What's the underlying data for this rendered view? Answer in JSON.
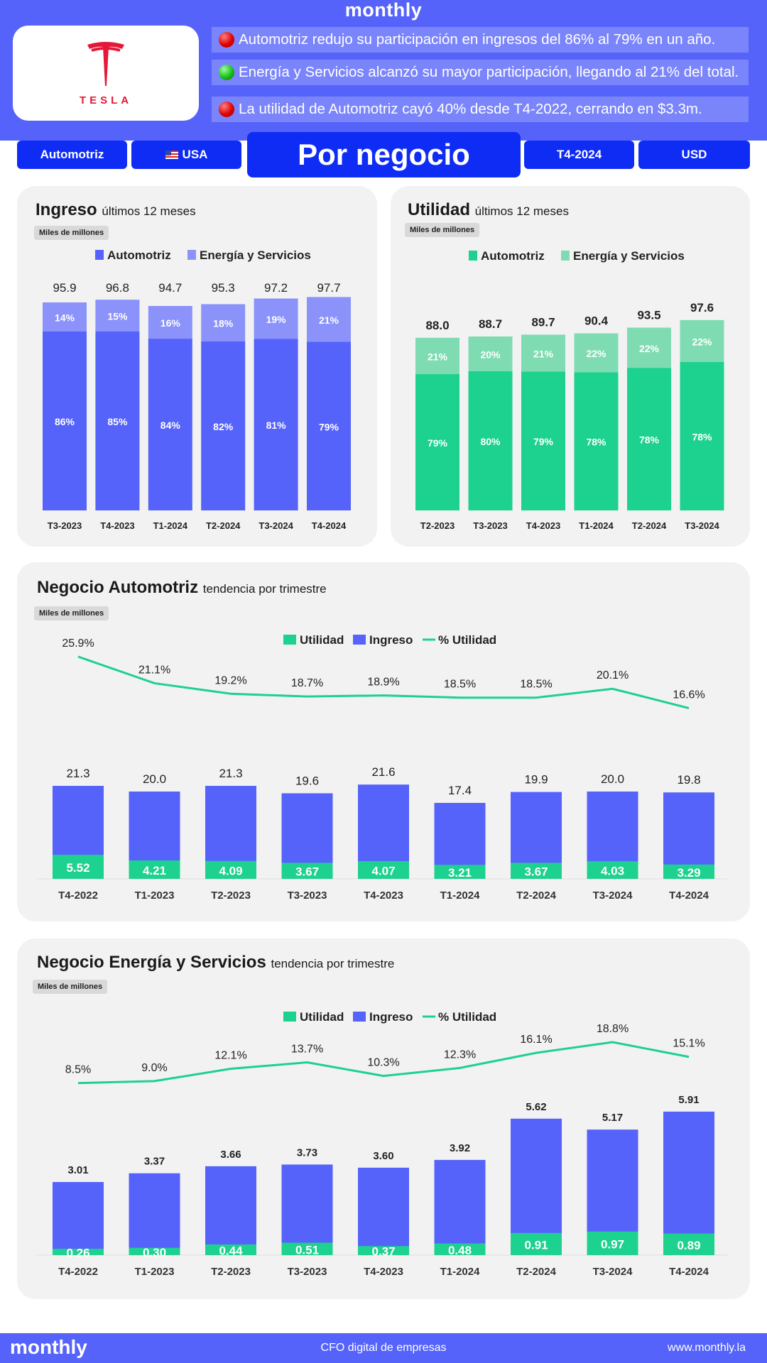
{
  "header": {
    "brand": "monthly",
    "logo_word": "TESLA",
    "insights": [
      {
        "status": "red",
        "text": "Automotriz redujo su participación en ingresos del 86% al 79% en un año."
      },
      {
        "status": "green",
        "text": "Energía y Servicios alcanzó su mayor participación, llegando al 21% del total."
      },
      {
        "status": "red",
        "text": "La utilidad de Automotriz cayó 40% desde T4-2022, cerrando en $3.3m."
      }
    ]
  },
  "filters": {
    "segment": "Automotriz",
    "country": "USA",
    "title": "Por negocio",
    "period": "T4-2024",
    "currency": "USD"
  },
  "colors": {
    "blue": "#5563fa",
    "blue_light": "#8b93fb",
    "green": "#1dd18f",
    "green_light": "#7fdcb2",
    "line": "#1dd18f",
    "tesla_red": "#e31937"
  },
  "chart_data": [
    {
      "id": "ingreso",
      "type": "bar",
      "stacked": true,
      "title": "Ingreso",
      "subtitle": "últimos 12 meses",
      "unit": "Miles de millones",
      "legend_position": "top",
      "categories": [
        "T3-2023",
        "T4-2023",
        "T1-2024",
        "T2-2024",
        "T3-2024",
        "T4-2024"
      ],
      "totals": [
        95.9,
        96.8,
        94.7,
        95.3,
        97.2,
        97.7
      ],
      "series": [
        {
          "name": "Automotriz",
          "color": "#5563fa",
          "values_pct": [
            86,
            85,
            84,
            82,
            81,
            79
          ]
        },
        {
          "name": "Energía y Servicios",
          "color": "#8b93fb",
          "values_pct": [
            14,
            15,
            16,
            18,
            19,
            21
          ]
        }
      ]
    },
    {
      "id": "utilidad",
      "type": "bar",
      "stacked": true,
      "title": "Utilidad",
      "subtitle": "últimos 12 meses",
      "unit": "Miles de millones",
      "legend_position": "top",
      "categories": [
        "T2-2023",
        "T3-2023",
        "T4-2023",
        "T1-2024",
        "T2-2024",
        "T3-2024"
      ],
      "totals": [
        88.0,
        88.7,
        89.7,
        90.4,
        93.5,
        97.6
      ],
      "series": [
        {
          "name": "Automotriz",
          "color": "#1dd18f",
          "values_pct": [
            79,
            80,
            79,
            78,
            78,
            78
          ]
        },
        {
          "name": "Energía y Servicios",
          "color": "#7fdcb2",
          "values_pct": [
            21,
            20,
            21,
            22,
            22,
            22
          ]
        }
      ]
    },
    {
      "id": "automotriz",
      "type": "bar",
      "overlay_line": true,
      "title": "Negocio Automotriz",
      "subtitle": "tendencia por trimestre",
      "unit": "Miles de millones",
      "legend_position": "top",
      "categories": [
        "T4-2022",
        "T1-2023",
        "T2-2023",
        "T3-2023",
        "T4-2023",
        "T1-2024",
        "T2-2024",
        "T3-2024",
        "T4-2024"
      ],
      "series": [
        {
          "name": "Utilidad",
          "color": "#1dd18f",
          "values": [
            5.52,
            4.21,
            4.09,
            3.67,
            4.07,
            3.21,
            3.67,
            4.03,
            3.29
          ]
        },
        {
          "name": "Ingreso",
          "color": "#5563fa",
          "values": [
            21.3,
            20.0,
            21.3,
            19.6,
            21.6,
            17.4,
            19.9,
            20.0,
            19.8
          ]
        },
        {
          "name": "% Utilidad",
          "color": "#1dd18f",
          "type": "line",
          "values_pct": [
            25.9,
            21.1,
            19.2,
            18.7,
            18.9,
            18.5,
            18.5,
            20.1,
            16.6
          ]
        }
      ]
    },
    {
      "id": "energia",
      "type": "bar",
      "overlay_line": true,
      "title": "Negocio Energía y Servicios",
      "subtitle": "tendencia por trimestre",
      "unit": "Miles de millones",
      "legend_position": "top",
      "categories": [
        "T4-2022",
        "T1-2023",
        "T2-2023",
        "T3-2023",
        "T4-2023",
        "T1-2024",
        "T2-2024",
        "T3-2024",
        "T4-2024"
      ],
      "series": [
        {
          "name": "Utilidad",
          "color": "#1dd18f",
          "values": [
            0.26,
            0.3,
            0.44,
            0.51,
            0.37,
            0.48,
            0.91,
            0.97,
            0.89
          ]
        },
        {
          "name": "Ingreso",
          "color": "#5563fa",
          "values": [
            3.01,
            3.37,
            3.66,
            3.73,
            3.6,
            3.92,
            5.62,
            5.17,
            5.91
          ]
        },
        {
          "name": "% Utilidad",
          "color": "#1dd18f",
          "type": "line",
          "values_pct": [
            8.5,
            9.0,
            12.1,
            13.7,
            10.3,
            12.3,
            16.1,
            18.8,
            15.1
          ]
        }
      ]
    }
  ],
  "footer": {
    "brand": "monthly",
    "tagline": "CFO digital de empresas",
    "url": "www.monthly.la"
  }
}
